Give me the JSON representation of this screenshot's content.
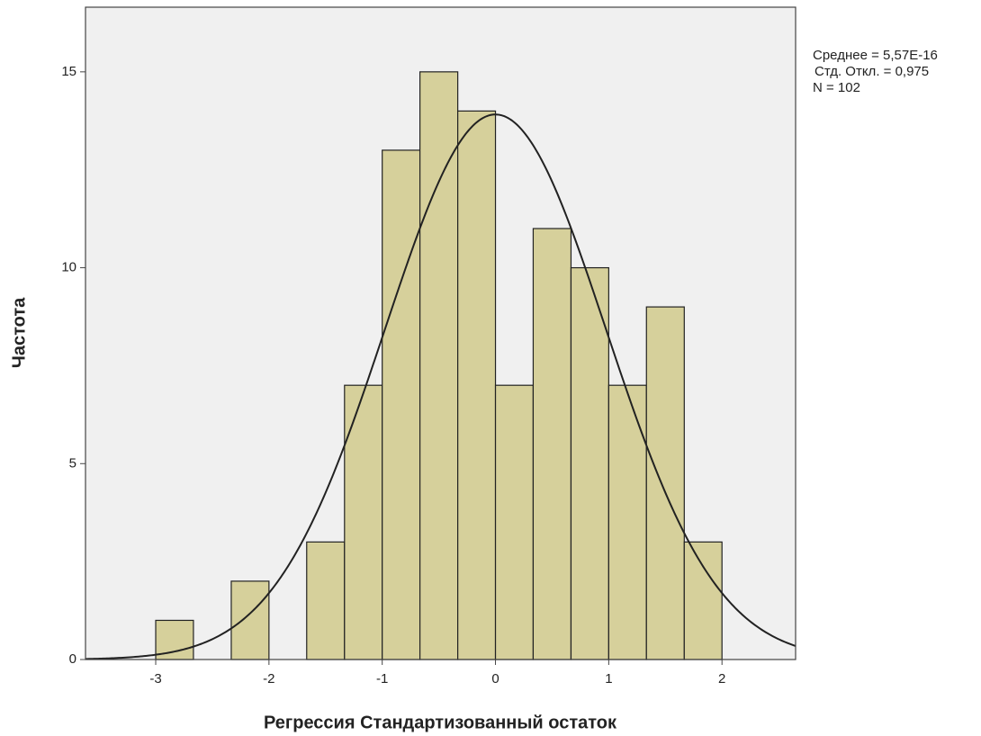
{
  "chart_data": {
    "type": "histogram",
    "x_label": "Регрессия Стандартизованный остаток",
    "y_label": "Частота",
    "bins": [
      -3,
      -2.667,
      -2.333,
      -2,
      -1.667,
      -1.333,
      -1,
      -0.667,
      -0.333,
      0,
      0.333,
      0.667,
      1,
      1.333,
      1.667,
      2
    ],
    "counts": [
      1,
      0,
      2,
      0,
      3,
      7,
      13,
      15,
      14,
      7,
      11,
      10,
      7,
      9,
      3
    ],
    "color": "#d6d09b",
    "xlim": [
      -3.62,
      2.65
    ],
    "ylim": [
      0,
      16.65
    ],
    "xticks": [
      -3,
      -2,
      -1,
      0,
      1,
      2
    ],
    "yticks": [
      0,
      5,
      10,
      15
    ],
    "normal": {
      "mean": {
        "value": 5.57e-16,
        "label": "Среднее = 5,57E-16"
      },
      "sd": {
        "value": 0.975,
        "label": "Стд. Откл. = 0,975"
      },
      "n": {
        "value": 102,
        "label": "N = 102"
      }
    }
  }
}
